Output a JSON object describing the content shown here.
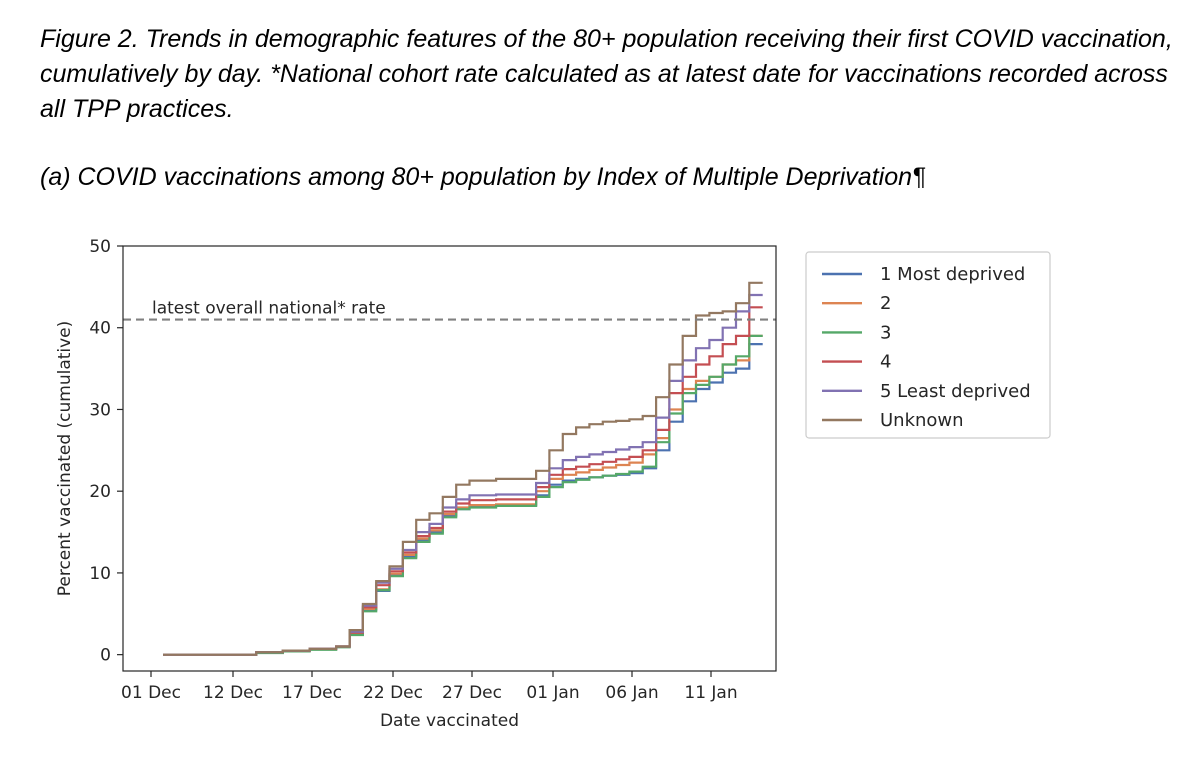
{
  "figure": {
    "caption": "Figure 2. Trends in demographic features of the 80+ population receiving their first COVID vaccination, cumulatively by day. *National cohort rate calculated as at latest date for vaccinations recorded across all TPP practices.",
    "subcaption": "(a) COVID vaccinations among 80+ population by Index of Multiple Deprivation¶"
  },
  "chart_data": {
    "type": "line",
    "step": true,
    "xlabel": "Date vaccinated",
    "ylabel": "Percent vaccinated (cumulative)",
    "x_tick_labels": [
      "01 Dec",
      "12 Dec",
      "17 Dec",
      "22 Dec",
      "27 Dec",
      "01 Jan",
      "06 Jan",
      "11 Jan"
    ],
    "y_ticks": [
      0,
      10,
      20,
      30,
      40,
      50
    ],
    "ylim": [
      -2,
      50
    ],
    "xlim": [
      "2020-11-28",
      "2021-01-16"
    ],
    "grid": false,
    "legend_position": "outside-right",
    "reference_line": {
      "label": "latest overall national* rate",
      "value": 41,
      "style": "dashed",
      "color": "#808080"
    },
    "x": [
      "2020-12-01",
      "2020-12-05",
      "2020-12-08",
      "2020-12-10",
      "2020-12-12",
      "2020-12-14",
      "2020-12-15",
      "2020-12-16",
      "2020-12-17",
      "2020-12-18",
      "2020-12-19",
      "2020-12-20",
      "2020-12-21",
      "2020-12-22",
      "2020-12-23",
      "2020-12-24",
      "2020-12-26",
      "2020-12-29",
      "2020-12-30",
      "2020-12-31",
      "2021-01-01",
      "2021-01-02",
      "2021-01-03",
      "2021-01-04",
      "2021-01-05",
      "2021-01-06",
      "2021-01-07",
      "2021-01-08",
      "2021-01-09",
      "2021-01-10",
      "2021-01-11",
      "2021-01-12",
      "2021-01-13",
      "2021-01-14"
    ],
    "series": [
      {
        "name": "1 Most deprived",
        "color": "#4c72b0",
        "values": [
          0,
          0,
          0.3,
          0.5,
          0.7,
          1.0,
          2.5,
          5.5,
          7.8,
          9.8,
          12.0,
          14.0,
          15.0,
          17.0,
          17.8,
          18.2,
          18.3,
          19.5,
          20.8,
          21.3,
          21.5,
          21.7,
          21.9,
          22.0,
          22.2,
          22.8,
          25.0,
          28.5,
          31.0,
          32.5,
          33.3,
          34.5,
          35.0,
          38.0
        ]
      },
      {
        "name": "2",
        "color": "#dd8452",
        "values": [
          0,
          0,
          0.3,
          0.5,
          0.7,
          1.0,
          2.6,
          5.6,
          8.0,
          9.9,
          12.2,
          14.2,
          15.2,
          17.2,
          18.0,
          18.3,
          18.4,
          20.0,
          21.5,
          22.0,
          22.3,
          22.6,
          22.9,
          23.2,
          23.5,
          24.5,
          26.5,
          30.0,
          32.5,
          33.5,
          34.0,
          35.5,
          36.0,
          39.0
        ]
      },
      {
        "name": "3",
        "color": "#55a868",
        "values": [
          0,
          0,
          0.2,
          0.4,
          0.6,
          0.9,
          2.4,
          5.3,
          7.9,
          9.6,
          11.8,
          13.8,
          14.8,
          16.8,
          17.8,
          18.0,
          18.2,
          19.3,
          20.5,
          21.1,
          21.4,
          21.7,
          21.9,
          22.1,
          22.4,
          23.0,
          26.0,
          29.5,
          32.0,
          33.0,
          34.0,
          35.5,
          36.5,
          39.0
        ]
      },
      {
        "name": "4",
        "color": "#c44e52",
        "values": [
          0,
          0,
          0.3,
          0.5,
          0.7,
          1.0,
          2.7,
          5.8,
          8.5,
          10.2,
          12.5,
          14.5,
          15.5,
          17.5,
          18.5,
          18.9,
          19.0,
          20.5,
          22.0,
          22.7,
          23.0,
          23.3,
          23.6,
          23.9,
          24.2,
          25.0,
          27.5,
          32.0,
          34.0,
          35.5,
          36.5,
          38.0,
          39.0,
          42.5
        ]
      },
      {
        "name": "5 Least deprived",
        "color": "#8172b2",
        "values": [
          0,
          0,
          0.3,
          0.5,
          0.7,
          1.0,
          2.8,
          6.0,
          8.8,
          10.5,
          12.8,
          15.0,
          16.0,
          18.0,
          19.0,
          19.5,
          19.6,
          21.0,
          22.8,
          23.8,
          24.2,
          24.5,
          24.8,
          25.1,
          25.4,
          26.0,
          29.0,
          33.5,
          36.0,
          37.5,
          38.5,
          40.0,
          42.0,
          44.0
        ]
      },
      {
        "name": "Unknown",
        "color": "#937860",
        "values": [
          0,
          0,
          0.3,
          0.5,
          0.7,
          1.0,
          3.0,
          6.2,
          9.0,
          10.8,
          13.8,
          16.5,
          17.3,
          19.3,
          20.8,
          21.3,
          21.5,
          22.5,
          25.0,
          27.0,
          27.8,
          28.2,
          28.5,
          28.6,
          28.8,
          29.2,
          31.5,
          35.5,
          39.0,
          41.5,
          41.8,
          42.0,
          43.0,
          45.5
        ]
      }
    ]
  }
}
